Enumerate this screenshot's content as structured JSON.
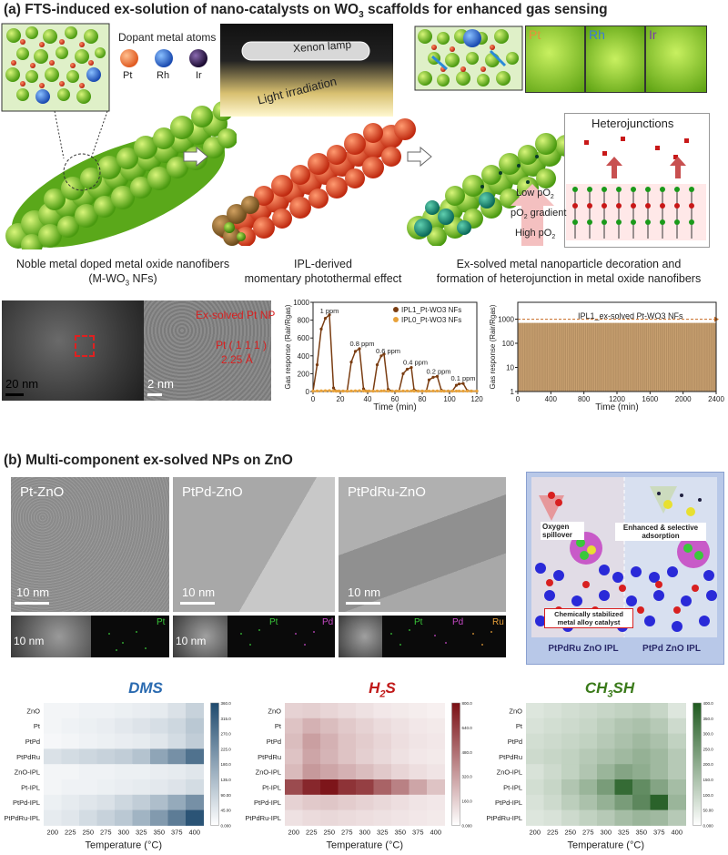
{
  "section_a": {
    "title": "(a) FTS-induced ex-solution of nano-catalysts on WO3 scaffolds for enhanced gas sensing",
    "title_parts": {
      "pre": "(a) FTS-induced ex-solution of nano-catalysts on WO",
      "sub": "3",
      "post": " scaffolds for enhanced gas sensing"
    },
    "dopant_title": "Dopant metal atoms",
    "dopants": [
      {
        "label": "Pt",
        "color": "#f07a3a"
      },
      {
        "label": "Rh",
        "color": "#4a8fe0"
      },
      {
        "label": "Ir",
        "color": "#4a2a6a"
      }
    ],
    "lamp_label": "Xenon lamp",
    "irradiation_label": "Light irradiation",
    "crystal_labels": [
      {
        "label": "Pt",
        "color": "#e8903a"
      },
      {
        "label": "Rh",
        "color": "#3a7ad8"
      },
      {
        "label": "Ir",
        "color": "#7a3aa8"
      }
    ],
    "heterojunctions_label": "Heterojunctions",
    "low_po2": "Low pO2",
    "po2_gradient": "pO2 gradient",
    "high_po2": "High pO2",
    "caption_1_line1": "Noble metal doped metal oxide nanofibers",
    "caption_1_line2": "(M-WO3 NFs)",
    "caption_2_line1": "IPL-derived",
    "caption_2_line2": "momentary photothermal effect",
    "caption_3_line1": "Ex-solved metal nanoparticle decoration and",
    "caption_3_line2": "formation of heterojunction in metal oxide nanofibers",
    "tem_scale_1": "20 nm",
    "tem_scale_2": "2 nm",
    "tem_np_label": "Ex-solved Pt NP",
    "tem_lattice_label": "Pt ( 1 1 1 )",
    "tem_spacing": "2.25 Å"
  },
  "chart_data": [
    {
      "type": "line",
      "xlabel": "Time (min)",
      "ylabel": "Gas response (Rair/Rgas)",
      "xlim": [
        0,
        120
      ],
      "ylim": [
        0,
        1000
      ],
      "xticks": [
        0,
        20,
        40,
        60,
        80,
        100,
        120
      ],
      "yticks": [
        0,
        200,
        400,
        600,
        800,
        1000
      ],
      "series": [
        {
          "name": "IPL1_Pt-WO3 NFs",
          "color": "#7a3d12",
          "x": [
            0,
            3,
            6,
            9,
            12,
            15,
            17,
            19,
            22,
            25,
            28,
            31,
            34,
            37,
            39,
            41,
            44,
            47,
            50,
            52,
            55,
            58,
            61,
            63,
            66,
            69,
            72,
            74,
            77,
            80,
            83,
            85,
            88,
            91,
            94,
            96,
            99,
            102,
            105,
            107,
            110,
            113,
            116,
            120
          ],
          "y": [
            5,
            300,
            700,
            820,
            860,
            40,
            5,
            5,
            5,
            5,
            330,
            450,
            480,
            30,
            5,
            5,
            5,
            300,
            400,
            420,
            25,
            5,
            5,
            5,
            200,
            250,
            270,
            20,
            5,
            5,
            5,
            130,
            160,
            170,
            15,
            5,
            5,
            5,
            70,
            85,
            90,
            10,
            5,
            5
          ]
        },
        {
          "name": "IPL0_Pt-WO3 NFs",
          "color": "#e8a23a",
          "x": [
            0,
            3,
            6,
            9,
            12,
            15,
            17,
            19,
            22,
            25,
            28,
            31,
            34,
            37,
            39,
            41,
            44,
            47,
            50,
            52,
            55,
            58,
            61,
            63,
            66,
            69,
            72,
            74,
            77,
            80,
            83,
            85,
            88,
            91,
            94,
            96,
            99,
            102,
            105,
            107,
            110,
            113,
            116,
            120
          ],
          "y": [
            5,
            6,
            8,
            9,
            10,
            6,
            5,
            5,
            5,
            5,
            6,
            8,
            9,
            6,
            5,
            5,
            5,
            6,
            7,
            8,
            5,
            5,
            5,
            5,
            6,
            7,
            7,
            5,
            5,
            5,
            5,
            5,
            6,
            6,
            5,
            5,
            5,
            5,
            5,
            5,
            5,
            5,
            5,
            5
          ]
        }
      ],
      "annotations": [
        "1 ppm",
        "0.8 ppm",
        "0.6 ppm",
        "0.4 ppm",
        "0.2 ppm",
        "0.1 ppm"
      ]
    },
    {
      "type": "line",
      "xlabel": "Time (min)",
      "ylabel": "Gas response (Rair/Rgas)",
      "xlim": [
        0,
        2400
      ],
      "ylim": [
        1,
        5000
      ],
      "yscale": "log",
      "xticks": [
        0,
        400,
        800,
        1200,
        1600,
        2000,
        2400
      ],
      "yticks": [
        1,
        10,
        100,
        1000
      ],
      "series": [
        {
          "name": "IPL1_ex-solved Pt-WO3 NFs",
          "color": "#c8a070",
          "peak": 700,
          "baseline": 1
        }
      ]
    },
    {
      "type": "heatmap",
      "title": "DMS",
      "rows": [
        "ZnO",
        "Pt",
        "PtPd",
        "PtPdRu",
        "ZnO-IPL",
        "Pt-IPL",
        "PtPd-IPL",
        "PtPdRu-IPL"
      ],
      "cols": [
        "200",
        "225",
        "250",
        "275",
        "300",
        "325",
        "350",
        "375",
        "400"
      ],
      "xlabel": "Temperature (°C)",
      "colorbar_ticks": [
        "360.0",
        "315.0",
        "270.0",
        "225.0",
        "180.0",
        "135.0",
        "90.00",
        "45.00",
        "0.000"
      ],
      "vmax": 360,
      "values": [
        [
          20,
          20,
          25,
          25,
          30,
          35,
          40,
          60,
          90
        ],
        [
          20,
          25,
          30,
          35,
          45,
          55,
          65,
          80,
          110
        ],
        [
          15,
          20,
          25,
          30,
          35,
          40,
          50,
          70,
          100
        ],
        [
          60,
          70,
          80,
          90,
          100,
          120,
          180,
          220,
          280
        ],
        [
          20,
          20,
          25,
          25,
          30,
          30,
          35,
          40,
          50
        ],
        [
          20,
          25,
          25,
          30,
          35,
          40,
          45,
          55,
          70
        ],
        [
          30,
          40,
          50,
          60,
          80,
          100,
          130,
          170,
          220
        ],
        [
          40,
          50,
          70,
          90,
          110,
          150,
          200,
          260,
          340
        ]
      ]
    },
    {
      "type": "heatmap",
      "title": "H2S",
      "rows": [
        "ZnO",
        "Pt",
        "PtPd",
        "PtPdRu",
        "ZnO-IPL",
        "Pt-IPL",
        "PtPd-IPL",
        "PtPdRu-IPL"
      ],
      "cols": [
        "200",
        "225",
        "250",
        "275",
        "300",
        "325",
        "350",
        "375",
        "400"
      ],
      "xlabel": "Temperature (°C)",
      "colorbar_ticks": [
        "800.0",
        "640.0",
        "480.0",
        "320.0",
        "160.0",
        "0.000"
      ],
      "vmax": 800,
      "values": [
        [
          150,
          160,
          140,
          120,
          100,
          80,
          70,
          60,
          50
        ],
        [
          200,
          260,
          220,
          180,
          150,
          120,
          100,
          80,
          70
        ],
        [
          220,
          320,
          260,
          200,
          170,
          140,
          110,
          90,
          80
        ],
        [
          200,
          300,
          250,
          200,
          160,
          130,
          100,
          80,
          70
        ],
        [
          230,
          340,
          300,
          260,
          220,
          180,
          140,
          110,
          90
        ],
        [
          600,
          720,
          780,
          680,
          640,
          520,
          420,
          300,
          200
        ],
        [
          150,
          180,
          190,
          170,
          150,
          130,
          110,
          90,
          80
        ],
        [
          100,
          120,
          130,
          120,
          110,
          100,
          90,
          80,
          70
        ]
      ]
    },
    {
      "type": "heatmap",
      "title": "CH3SH",
      "rows": [
        "ZnO",
        "Pt",
        "PtPd",
        "PtPdRu",
        "ZnO-IPL",
        "Pt-IPL",
        "PtPd-IPL",
        "PtPdRu-IPL"
      ],
      "cols": [
        "200",
        "225",
        "250",
        "275",
        "300",
        "325",
        "350",
        "375",
        "400"
      ],
      "xlabel": "Temperature (°C)",
      "colorbar_ticks": [
        "400.0",
        "350.0",
        "300.0",
        "250.0",
        "200.0",
        "150.0",
        "100.0",
        "50.00",
        "0.000"
      ],
      "vmax": 400,
      "values": [
        [
          60,
          70,
          80,
          90,
          100,
          110,
          120,
          100,
          60
        ],
        [
          70,
          80,
          90,
          100,
          120,
          140,
          150,
          130,
          90
        ],
        [
          80,
          90,
          100,
          110,
          130,
          150,
          170,
          150,
          110
        ],
        [
          90,
          100,
          110,
          130,
          150,
          170,
          190,
          170,
          130
        ],
        [
          70,
          90,
          110,
          140,
          180,
          220,
          200,
          170,
          130
        ],
        [
          80,
          100,
          140,
          180,
          240,
          360,
          280,
          220,
          160
        ],
        [
          70,
          90,
          120,
          150,
          190,
          240,
          290,
          380,
          180
        ],
        [
          60,
          70,
          90,
          110,
          130,
          160,
          180,
          170,
          130
        ]
      ]
    }
  ],
  "section_b": {
    "title": "(b) Multi-component ex-solved NPs on ZnO",
    "tem_labels": [
      "Pt-ZnO",
      "PtPd-ZnO",
      "PtPdRu-ZnO"
    ],
    "scale_label": "10 nm",
    "eds_labels": [
      [
        "Pt"
      ],
      [
        "Pt",
        "Pd"
      ],
      [
        "Pt",
        "Pd",
        "Ru"
      ]
    ],
    "eds_colors": {
      "Pt": "#3ac83a",
      "Pd": "#c84ac8",
      "Ru": "#e8a03a"
    },
    "diagram_labels": {
      "spillover": "Oxygen spillover",
      "adsorption": "Enhanced & selective adsorption",
      "stabilized_line1": "Chemically stabilized",
      "stabilized_line2": "metal alloy catalyst",
      "left_caption": "PtPdRu ZnO IPL",
      "right_caption": "PtPd ZnO IPL"
    }
  },
  "colors": {
    "dms_max": "#1e4a6e",
    "h2s_max": "#7a0f14",
    "ch3sh_max": "#1f5a1f",
    "dms_title": "#2a6ab0",
    "h2s_title": "#c01818",
    "ch3sh_title": "#3a7a1a"
  }
}
